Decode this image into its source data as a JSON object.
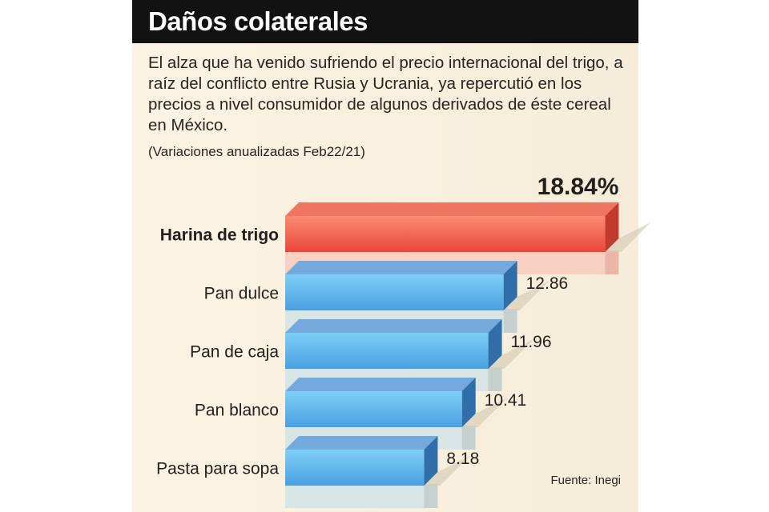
{
  "title": "Daños colaterales",
  "description": "El alza que ha venido sufriendo el precio internacional del trigo, a raíz del conflicto entre Rusia y Ucrania, ya repercutió en los precios a nivel consumidor de algunos derivados de éste cereal en México.",
  "note": "(Variaciones anualizadas  Feb22/21)",
  "source": "Fuente: Inegi",
  "chart_data": {
    "type": "bar",
    "orientation": "horizontal",
    "title": "Daños colaterales",
    "unit": "%",
    "categories": [
      "Harina de trigo",
      "Pan dulce",
      "Pan de caja",
      "Pan blanco",
      "Pasta para sopa"
    ],
    "values": [
      18.84,
      12.86,
      11.96,
      10.41,
      8.18
    ],
    "value_labels": [
      "18.84%",
      "12.86",
      "11.96",
      "10.41",
      "8.18"
    ],
    "highlight": "Harina de trigo",
    "colors": {
      "highlight": "#ef5a48",
      "default": "#5aaee8"
    }
  }
}
